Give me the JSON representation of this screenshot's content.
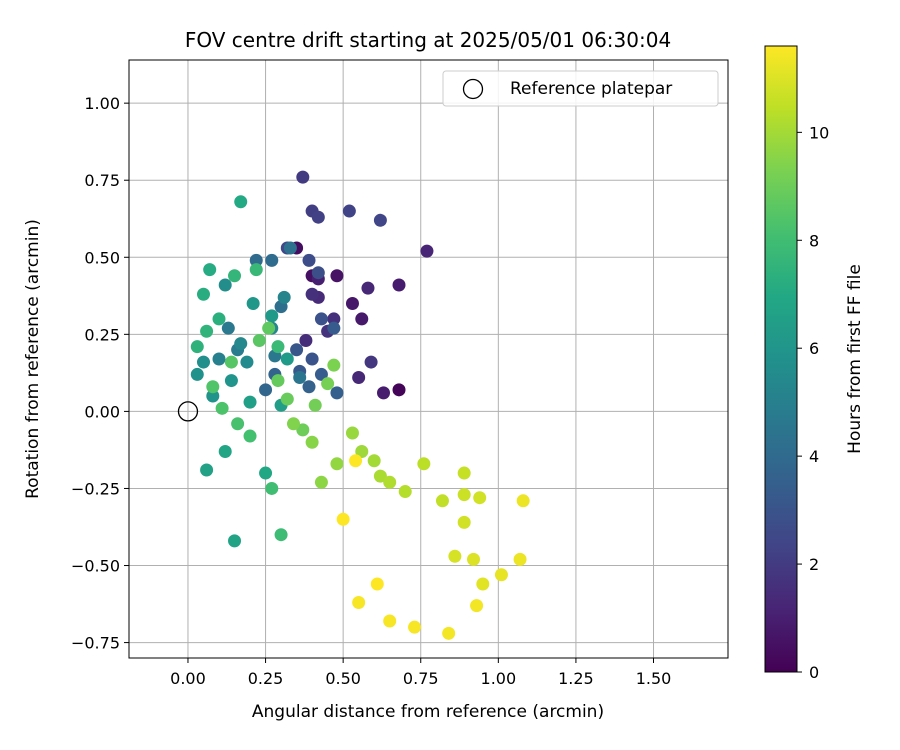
{
  "chart_data": {
    "type": "scatter",
    "title": "FOV centre drift starting at 2025/05/01 06:30:04",
    "xlabel": "Angular distance from reference (arcmin)",
    "ylabel": "Rotation from reference (arcmin)",
    "xlim": [
      -0.19,
      1.74
    ],
    "ylim": [
      -0.8,
      1.14
    ],
    "x_ticks": [
      "0.00",
      "0.25",
      "0.50",
      "0.75",
      "1.00",
      "1.25",
      "1.50"
    ],
    "x_tick_values": [
      0,
      0.25,
      0.5,
      0.75,
      1.0,
      1.25,
      1.5
    ],
    "y_ticks": [
      "−0.75",
      "−0.50",
      "−0.25",
      "0.00",
      "0.25",
      "0.50",
      "0.75",
      "1.00"
    ],
    "y_tick_values": [
      -0.75,
      -0.5,
      -0.25,
      0,
      0.25,
      0.5,
      0.75,
      1.0
    ],
    "grid": true,
    "legend": {
      "placement": "top-right",
      "entries": [
        "Reference platepar"
      ]
    },
    "reference_point": {
      "label": "Reference platepar",
      "x": 0,
      "y": 0,
      "marker": "open-circle"
    },
    "colorbar": {
      "label": "Hours from first FF file",
      "colormap": "viridis",
      "range": [
        0,
        11.6
      ],
      "ticks": [
        "0",
        "2",
        "4",
        "6",
        "8",
        "10"
      ],
      "tick_values": [
        0,
        2,
        4,
        6,
        8,
        10
      ]
    },
    "series": [
      {
        "color_by": "hours",
        "points": [
          [
            0.68,
            0.07,
            0.1
          ],
          [
            0.35,
            0.53,
            0.4
          ],
          [
            0.4,
            0.44,
            0.5
          ],
          [
            0.48,
            0.44,
            0.6
          ],
          [
            0.53,
            0.35,
            0.7
          ],
          [
            0.56,
            0.3,
            0.8
          ],
          [
            0.68,
            0.41,
            0.9
          ],
          [
            0.63,
            0.06,
            0.9
          ],
          [
            0.42,
            0.43,
            1.0
          ],
          [
            0.77,
            0.52,
            1.2
          ],
          [
            0.58,
            0.4,
            1.3
          ],
          [
            0.55,
            0.11,
            1.3
          ],
          [
            0.42,
            0.37,
            1.4
          ],
          [
            0.38,
            0.23,
            1.5
          ],
          [
            0.4,
            0.38,
            1.6
          ],
          [
            0.47,
            0.3,
            1.6
          ],
          [
            0.45,
            0.26,
            1.7
          ],
          [
            0.59,
            0.16,
            1.8
          ],
          [
            0.37,
            0.76,
            2.0
          ],
          [
            0.4,
            0.65,
            2.1
          ],
          [
            0.42,
            0.63,
            2.2
          ],
          [
            0.52,
            0.65,
            2.3
          ],
          [
            0.62,
            0.62,
            2.4
          ],
          [
            0.32,
            0.53,
            2.5
          ],
          [
            0.39,
            0.49,
            2.7
          ],
          [
            0.42,
            0.45,
            2.8
          ],
          [
            0.43,
            0.3,
            2.9
          ],
          [
            0.4,
            0.17,
            3.0
          ],
          [
            0.35,
            0.2,
            3.1
          ],
          [
            0.36,
            0.13,
            3.2
          ],
          [
            0.47,
            0.27,
            3.3
          ],
          [
            0.43,
            0.12,
            3.4
          ],
          [
            0.48,
            0.06,
            3.5
          ],
          [
            0.39,
            0.08,
            3.6
          ],
          [
            0.28,
            0.12,
            3.7
          ],
          [
            0.25,
            0.07,
            3.8
          ],
          [
            0.22,
            0.49,
            4.0
          ],
          [
            0.27,
            0.49,
            4.1
          ],
          [
            0.3,
            0.34,
            4.2
          ],
          [
            0.33,
            0.53,
            4.3
          ],
          [
            0.36,
            0.11,
            4.5
          ],
          [
            0.28,
            0.18,
            4.6
          ],
          [
            0.13,
            0.27,
            4.7
          ],
          [
            0.16,
            0.2,
            4.8
          ],
          [
            0.1,
            0.17,
            5.0
          ],
          [
            0.31,
            0.37,
            5.2
          ],
          [
            0.27,
            0.27,
            5.3
          ],
          [
            0.17,
            0.22,
            5.4
          ],
          [
            0.19,
            0.16,
            5.5
          ],
          [
            0.12,
            0.41,
            5.6
          ],
          [
            0.05,
            0.16,
            5.7
          ],
          [
            0.03,
            0.12,
            5.8
          ],
          [
            0.08,
            0.05,
            5.9
          ],
          [
            0.14,
            0.1,
            6.0
          ],
          [
            0.21,
            0.35,
            6.1
          ],
          [
            0.27,
            0.31,
            6.2
          ],
          [
            0.32,
            0.17,
            6.3
          ],
          [
            0.3,
            0.02,
            6.4
          ],
          [
            0.2,
            0.03,
            6.5
          ],
          [
            0.06,
            -0.19,
            6.6
          ],
          [
            0.15,
            -0.42,
            6.7
          ],
          [
            0.12,
            -0.13,
            6.8
          ],
          [
            0.25,
            -0.2,
            6.9
          ],
          [
            0.17,
            0.68,
            7.0
          ],
          [
            0.07,
            0.46,
            7.1
          ],
          [
            0.05,
            0.38,
            7.2
          ],
          [
            0.1,
            0.3,
            7.3
          ],
          [
            0.03,
            0.21,
            7.4
          ],
          [
            0.06,
            0.26,
            7.5
          ],
          [
            0.15,
            0.44,
            7.6
          ],
          [
            0.22,
            0.46,
            7.7
          ],
          [
            0.29,
            0.21,
            7.8
          ],
          [
            0.3,
            -0.4,
            7.9
          ],
          [
            0.27,
            -0.25,
            8.0
          ],
          [
            0.2,
            -0.08,
            8.1
          ],
          [
            0.16,
            -0.04,
            8.2
          ],
          [
            0.11,
            0.01,
            8.3
          ],
          [
            0.08,
            0.08,
            8.4
          ],
          [
            0.14,
            0.16,
            8.5
          ],
          [
            0.23,
            0.23,
            8.6
          ],
          [
            0.26,
            0.27,
            8.7
          ],
          [
            0.29,
            0.1,
            8.8
          ],
          [
            0.32,
            0.04,
            8.9
          ],
          [
            0.37,
            -0.06,
            9.0
          ],
          [
            0.41,
            0.02,
            9.1
          ],
          [
            0.45,
            0.09,
            9.2
          ],
          [
            0.47,
            0.15,
            9.3
          ],
          [
            0.34,
            -0.04,
            9.4
          ],
          [
            0.4,
            -0.1,
            9.5
          ],
          [
            0.43,
            -0.23,
            9.6
          ],
          [
            0.48,
            -0.17,
            9.7
          ],
          [
            0.53,
            -0.07,
            9.8
          ],
          [
            0.56,
            -0.13,
            9.9
          ],
          [
            0.6,
            -0.16,
            10.0
          ],
          [
            0.62,
            -0.21,
            10.1
          ],
          [
            0.65,
            -0.23,
            10.2
          ],
          [
            0.7,
            -0.26,
            10.3
          ],
          [
            0.76,
            -0.17,
            10.4
          ],
          [
            0.82,
            -0.29,
            10.5
          ],
          [
            0.89,
            -0.2,
            10.6
          ],
          [
            0.89,
            -0.27,
            10.7
          ],
          [
            0.94,
            -0.28,
            10.8
          ],
          [
            0.89,
            -0.36,
            10.8
          ],
          [
            0.86,
            -0.47,
            10.9
          ],
          [
            0.92,
            -0.48,
            11.0
          ],
          [
            0.95,
            -0.56,
            11.1
          ],
          [
            1.01,
            -0.53,
            11.2
          ],
          [
            1.08,
            -0.29,
            11.3
          ],
          [
            1.07,
            -0.48,
            11.3
          ],
          [
            0.93,
            -0.63,
            11.4
          ],
          [
            0.84,
            -0.72,
            11.4
          ],
          [
            0.73,
            -0.7,
            11.5
          ],
          [
            0.65,
            -0.68,
            11.5
          ],
          [
            0.55,
            -0.62,
            11.5
          ],
          [
            0.61,
            -0.56,
            11.6
          ],
          [
            0.5,
            -0.35,
            11.6
          ],
          [
            0.54,
            -0.16,
            11.6
          ]
        ]
      }
    ]
  }
}
